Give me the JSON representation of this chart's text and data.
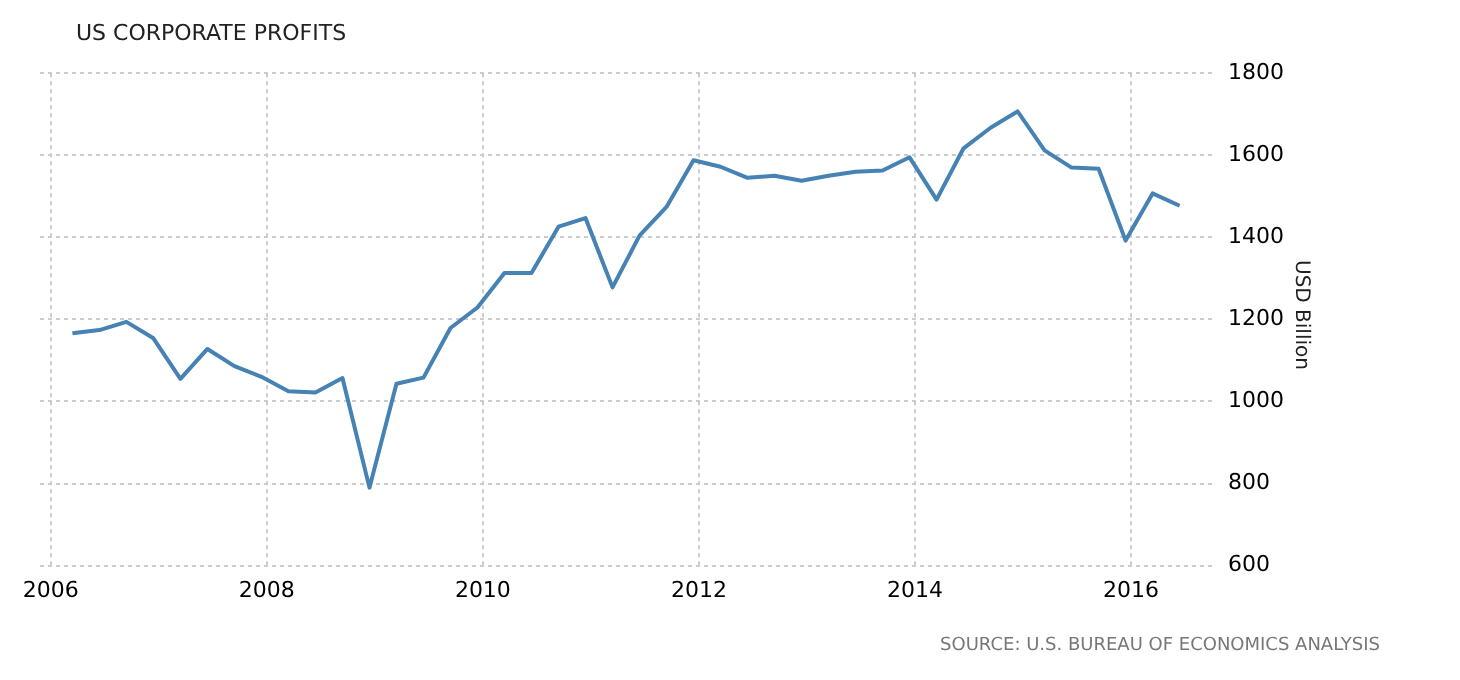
{
  "chart_data": {
    "type": "line",
    "title": "US CORPORATE PROFITS",
    "ylabel": "USD Billion",
    "annotations": [
      "SOURCE: U.S. BUREAU OF ECONOMICS ANALYSIS"
    ],
    "x": [
      2006.2,
      2006.45,
      2006.7,
      2006.95,
      2007.2,
      2007.45,
      2007.7,
      2007.95,
      2008.2,
      2008.45,
      2008.7,
      2008.95,
      2009.2,
      2009.45,
      2009.7,
      2009.95,
      2010.2,
      2010.45,
      2010.7,
      2010.95,
      2011.2,
      2011.45,
      2011.7,
      2011.95,
      2012.2,
      2012.45,
      2012.7,
      2012.95,
      2013.2,
      2013.45,
      2013.7,
      2013.95,
      2014.2,
      2014.45,
      2014.7,
      2014.95,
      2015.2,
      2015.45,
      2015.7,
      2015.95,
      2016.2,
      2016.45
    ],
    "series": [
      {
        "color": "#4682b4",
        "values": [
          1166,
          1174,
          1194,
          1154,
          1055,
          1128,
          1086,
          1060,
          1025,
          1022,
          1057,
          790,
          1043,
          1058,
          1179,
          1229,
          1313,
          1313,
          1426,
          1447,
          1278,
          1404,
          1474,
          1588,
          1572,
          1545,
          1550,
          1538,
          1550,
          1560,
          1563,
          1595,
          1492,
          1617,
          1667,
          1707,
          1612,
          1570,
          1567,
          1392,
          1507,
          1477
        ]
      }
    ],
    "xlim": [
      2005.9,
      2016.75
    ],
    "xticks": [
      2006,
      2008,
      2010,
      2012,
      2014,
      2016
    ],
    "ylim": [
      600,
      1800
    ],
    "yticks": [
      600,
      800,
      1000,
      1200,
      1400,
      1600,
      1800
    ],
    "grid": true,
    "legend": false,
    "marker": "none",
    "line_style": "solid"
  }
}
